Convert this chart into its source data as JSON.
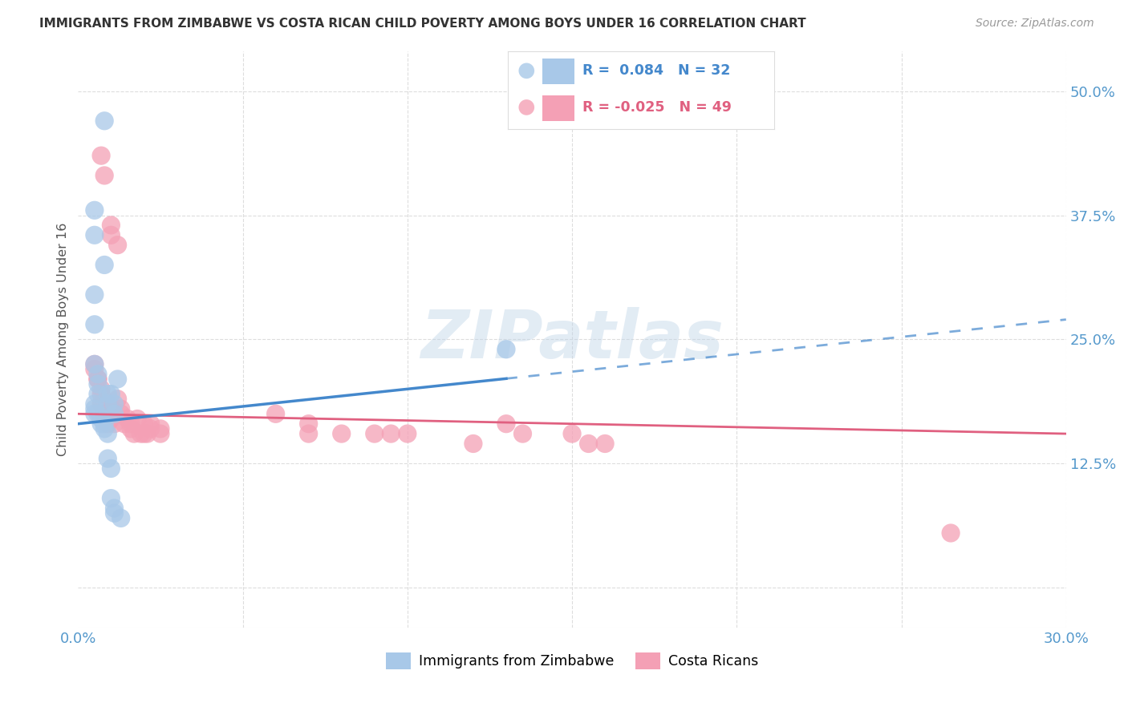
{
  "title": "IMMIGRANTS FROM ZIMBABWE VS COSTA RICAN CHILD POVERTY AMONG BOYS UNDER 16 CORRELATION CHART",
  "source": "Source: ZipAtlas.com",
  "ylabel": "Child Poverty Among Boys Under 16",
  "yticks": [
    0.0,
    0.125,
    0.25,
    0.375,
    0.5
  ],
  "ytick_labels": [
    "",
    "12.5%",
    "25.0%",
    "37.5%",
    "50.0%"
  ],
  "xmin": 0.0,
  "xmax": 0.3,
  "ymin": -0.04,
  "ymax": 0.54,
  "watermark": "ZIPatlas",
  "legend_label_blue": "Immigrants from Zimbabwe",
  "legend_label_pink": "Costa Ricans",
  "blue_color": "#a8c8e8",
  "pink_color": "#f4a0b5",
  "blue_line_color": "#4488cc",
  "pink_line_color": "#e06080",
  "title_color": "#333333",
  "axis_label_color": "#5599cc",
  "grid_color": "#dddddd",
  "blue_scatter_x": [
    0.008,
    0.005,
    0.005,
    0.008,
    0.005,
    0.005,
    0.005,
    0.006,
    0.006,
    0.006,
    0.005,
    0.005,
    0.005,
    0.006,
    0.007,
    0.007,
    0.008,
    0.008,
    0.009,
    0.009,
    0.01,
    0.011,
    0.011,
    0.012,
    0.009,
    0.009,
    0.01,
    0.01,
    0.011,
    0.011,
    0.013,
    0.13
  ],
  "blue_scatter_y": [
    0.47,
    0.38,
    0.355,
    0.325,
    0.295,
    0.265,
    0.225,
    0.215,
    0.205,
    0.195,
    0.185,
    0.18,
    0.175,
    0.175,
    0.17,
    0.165,
    0.165,
    0.16,
    0.195,
    0.185,
    0.195,
    0.185,
    0.175,
    0.21,
    0.155,
    0.13,
    0.12,
    0.09,
    0.08,
    0.075,
    0.07,
    0.24
  ],
  "pink_scatter_x": [
    0.007,
    0.008,
    0.01,
    0.01,
    0.012,
    0.005,
    0.005,
    0.006,
    0.006,
    0.007,
    0.007,
    0.007,
    0.008,
    0.009,
    0.009,
    0.01,
    0.01,
    0.011,
    0.012,
    0.013,
    0.013,
    0.014,
    0.015,
    0.016,
    0.016,
    0.017,
    0.018,
    0.019,
    0.02,
    0.02,
    0.021,
    0.022,
    0.022,
    0.025,
    0.025,
    0.06,
    0.07,
    0.07,
    0.08,
    0.09,
    0.095,
    0.1,
    0.12,
    0.13,
    0.135,
    0.15,
    0.155,
    0.16,
    0.265
  ],
  "pink_scatter_y": [
    0.435,
    0.415,
    0.365,
    0.355,
    0.345,
    0.225,
    0.22,
    0.21,
    0.21,
    0.2,
    0.195,
    0.185,
    0.175,
    0.165,
    0.175,
    0.18,
    0.17,
    0.165,
    0.19,
    0.18,
    0.175,
    0.165,
    0.17,
    0.165,
    0.16,
    0.155,
    0.17,
    0.155,
    0.165,
    0.155,
    0.155,
    0.165,
    0.16,
    0.16,
    0.155,
    0.175,
    0.165,
    0.155,
    0.155,
    0.155,
    0.155,
    0.155,
    0.145,
    0.165,
    0.155,
    0.155,
    0.145,
    0.145,
    0.055
  ],
  "blue_trend_x": [
    0.0,
    0.3
  ],
  "blue_trend_y_start": 0.165,
  "blue_trend_y_end": 0.27,
  "pink_trend_y_start": 0.175,
  "pink_trend_y_end": 0.155
}
